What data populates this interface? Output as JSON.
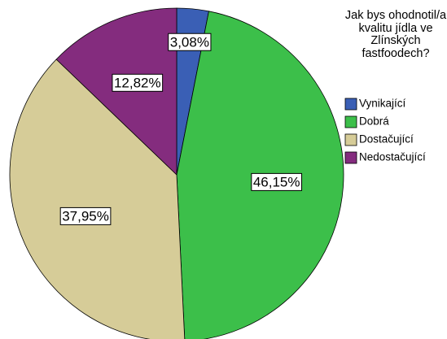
{
  "chart_data": {
    "type": "pie",
    "legend_title": "Jak bys ohodnotil/a kvalitu jídla ve Zlínských fastfoodech?",
    "categories": [
      "Vynikající",
      "Dobrá",
      "Dostačující",
      "Nedostačující"
    ],
    "values": [
      3.08,
      46.15,
      37.95,
      12.82
    ],
    "value_labels": [
      "3,08%",
      "46,15%",
      "37,95%",
      "12,82%"
    ],
    "colors": [
      "#3a5fb5",
      "#3cbf4a",
      "#d6cc98",
      "#842c7e"
    ],
    "legend": "right"
  }
}
